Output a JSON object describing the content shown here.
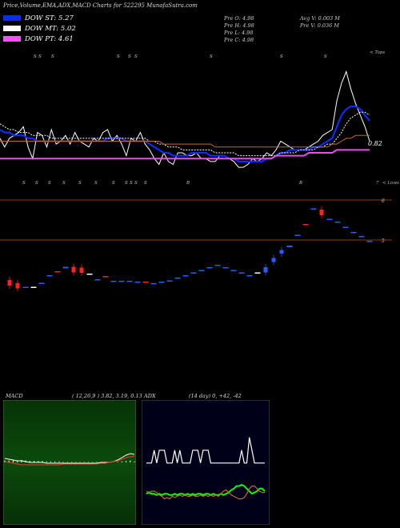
{
  "header": {
    "title": "Price,Volume,EMA,ADX,MACD Charts for 522295 MunafaSutra.com"
  },
  "legend": [
    {
      "label": "DOW ST: 5.27",
      "color": "#0a2dff"
    },
    {
      "label": "DOW MT: 5.02",
      "color": "#ffffff"
    },
    {
      "label": "DOW PT: 4.61",
      "color": "#ff4cff"
    }
  ],
  "price_info": {
    "open": "Pre  O: 4.98",
    "high": "Pre  H: 4.98",
    "low": "Pre  L: 4.98",
    "close": "Pre  C: 4.98",
    "avg_volume": "Avg V: 0.003  M",
    "volume": "Pre  V: 0.036  M"
  },
  "chart_data": [
    {
      "type": "line",
      "name": "price-ema-panel",
      "labels": {
        "top": "< Tops",
        "bottom": "< Lows",
        "bottom_num": "7",
        "last_value": "0.82",
        "marker": "S",
        "marker_b": "B"
      },
      "x": [
        1,
        2,
        3,
        4,
        5,
        6,
        7,
        8,
        9,
        10,
        11,
        12,
        13,
        14,
        15,
        16,
        17,
        18,
        19,
        20,
        21,
        22,
        23,
        24,
        25,
        26,
        27,
        28,
        29,
        30,
        31,
        32,
        33,
        34,
        35,
        36,
        37,
        38,
        39,
        40,
        41,
        42,
        43,
        44,
        45,
        46,
        47,
        48,
        49,
        50,
        51,
        52,
        53,
        54,
        55,
        56,
        57,
        58,
        59,
        60,
        61,
        62,
        63,
        64,
        65,
        66,
        67,
        68,
        69,
        70,
        71,
        72,
        73,
        74,
        75,
        76,
        77,
        78,
        79,
        80
      ],
      "series": [
        {
          "color": "#ffffff",
          "values": [
            4.3,
            4.0,
            4.3,
            4.4,
            4.5,
            4.7,
            4.0,
            3.6,
            4.5,
            4.4,
            4.0,
            4.6,
            4.1,
            4.2,
            4.4,
            4.1,
            4.5,
            4.2,
            4.1,
            4.0,
            4.3,
            4.2,
            4.5,
            4.6,
            4.2,
            4.4,
            4.1,
            3.7,
            4.3,
            4.2,
            4.5,
            4.1,
            3.9,
            3.6,
            3.4,
            3.8,
            3.5,
            3.4,
            3.8,
            3.8,
            3.7,
            3.7,
            3.8,
            3.6,
            3.6,
            3.5,
            3.5,
            3.7,
            3.7,
            3.6,
            3.5,
            3.3,
            3.3,
            3.4,
            3.6,
            3.5,
            3.6,
            3.8,
            3.7,
            3.9,
            4.2,
            4.1,
            4.0,
            3.9,
            3.9,
            3.9,
            4.0,
            4.1,
            4.2,
            4.4,
            4.5,
            4.6,
            5.6,
            6.2,
            6.6,
            6.0,
            5.5,
            5.1,
            4.7,
            4.2
          ]
        },
        {
          "color": "#0a2dff",
          "values": [
            4.6,
            4.5,
            4.5,
            4.4,
            4.4,
            4.4,
            4.3,
            4.3,
            4.2,
            4.2,
            4.2,
            4.2,
            4.2,
            4.2,
            4.2,
            4.2,
            4.2,
            4.2,
            4.2,
            4.2,
            4.2,
            4.2,
            4.2,
            4.3,
            4.3,
            4.3,
            4.3,
            4.2,
            4.2,
            4.2,
            4.2,
            4.2,
            4.1,
            4.0,
            3.9,
            3.8,
            3.8,
            3.7,
            3.7,
            3.7,
            3.7,
            3.8,
            3.8,
            3.8,
            3.8,
            3.7,
            3.7,
            3.7,
            3.7,
            3.6,
            3.6,
            3.5,
            3.5,
            3.5,
            3.5,
            3.5,
            3.5,
            3.6,
            3.6,
            3.7,
            3.8,
            3.8,
            3.9,
            3.9,
            3.9,
            3.9,
            3.9,
            4.0,
            4.0,
            4.1,
            4.2,
            4.3,
            4.7,
            5.1,
            5.3,
            5.4,
            5.4,
            5.3,
            5.1,
            4.9
          ]
        },
        {
          "color": "#ffffff",
          "values": [
            4.8,
            4.7,
            4.6,
            4.6,
            4.5,
            4.5,
            4.5,
            4.4,
            4.4,
            4.4,
            4.4,
            4.3,
            4.3,
            4.3,
            4.3,
            4.3,
            4.3,
            4.3,
            4.3,
            4.3,
            4.3,
            4.3,
            4.3,
            4.3,
            4.3,
            4.3,
            4.3,
            4.3,
            4.3,
            4.3,
            4.3,
            4.3,
            4.2,
            4.2,
            4.1,
            4.1,
            4.0,
            4.0,
            4.0,
            3.9,
            3.9,
            3.9,
            3.9,
            3.9,
            3.9,
            3.9,
            3.8,
            3.8,
            3.8,
            3.8,
            3.8,
            3.7,
            3.7,
            3.7,
            3.7,
            3.7,
            3.7,
            3.7,
            3.7,
            3.7,
            3.8,
            3.8,
            3.8,
            3.8,
            3.9,
            3.9,
            3.9,
            3.9,
            4.0,
            4.0,
            4.1,
            4.1,
            4.3,
            4.5,
            4.8,
            5.0,
            5.1,
            5.2,
            5.2,
            5.1
          ]
        },
        {
          "color": "#c8682a",
          "values": [
            4.2,
            4.2,
            4.2,
            4.2,
            4.2,
            4.2,
            4.2,
            4.2,
            4.2,
            4.2,
            4.2,
            4.2,
            4.2,
            4.2,
            4.2,
            4.2,
            4.2,
            4.2,
            4.2,
            4.2,
            4.2,
            4.2,
            4.2,
            4.2,
            4.2,
            4.2,
            4.2,
            4.2,
            4.2,
            4.2,
            4.2,
            4.2,
            4.2,
            4.2,
            4.2,
            4.1,
            4.1,
            4.1,
            4.1,
            4.1,
            4.1,
            4.1,
            4.1,
            4.1,
            4.1,
            4.1,
            4.0,
            4.0,
            4.0,
            4.0,
            4.0,
            4.0,
            4.0,
            4.0,
            4.0,
            4.0,
            4.0,
            4.0,
            4.0,
            4.0,
            4.0,
            4.0,
            4.0,
            4.0,
            4.0,
            4.0,
            4.0,
            4.0,
            4.0,
            4.0,
            4.0,
            4.1,
            4.1,
            4.2,
            4.3,
            4.3,
            4.4,
            4.4,
            4.4,
            4.4
          ]
        },
        {
          "color": "#e84ee8",
          "values": [
            3.6,
            3.6,
            3.6,
            3.6,
            3.6,
            3.6,
            3.6,
            3.6,
            3.6,
            3.6,
            3.6,
            3.6,
            3.6,
            3.6,
            3.6,
            3.6,
            3.6,
            3.6,
            3.6,
            3.6,
            3.6,
            3.6,
            3.6,
            3.6,
            3.6,
            3.6,
            3.6,
            3.6,
            3.6,
            3.6,
            3.6,
            3.6,
            3.6,
            3.6,
            3.6,
            3.6,
            3.6,
            3.6,
            3.6,
            3.6,
            3.6,
            3.6,
            3.6,
            3.6,
            3.6,
            3.6,
            3.6,
            3.6,
            3.6,
            3.6,
            3.6,
            3.6,
            3.6,
            3.6,
            3.6,
            3.6,
            3.6,
            3.6,
            3.6,
            3.7,
            3.7,
            3.7,
            3.7,
            3.7,
            3.7,
            3.7,
            3.8,
            3.8,
            3.8,
            3.8,
            3.8,
            3.8,
            3.9,
            3.9,
            3.9,
            3.9,
            3.9,
            3.9,
            3.9,
            3.9
          ]
        }
      ]
    },
    {
      "type": "candlestick",
      "name": "candle-panel",
      "levels": [
        {
          "value": 6,
          "label": "6"
        },
        {
          "value": 5,
          "label": "5"
        }
      ],
      "candles": [
        {
          "o": 4.0,
          "c": 3.86,
          "color": "#ff2020"
        },
        {
          "o": 3.92,
          "c": 3.79,
          "color": "#ff2020"
        },
        {
          "o": 3.83,
          "c": 3.83,
          "color": "#2060ff"
        },
        {
          "o": 3.83,
          "c": 3.83,
          "color": "#ffffff"
        },
        {
          "o": 3.93,
          "c": 3.93,
          "color": "#2060ff"
        },
        {
          "o": 4.12,
          "c": 4.12,
          "color": "#2060ff"
        },
        {
          "o": 4.22,
          "c": 4.22,
          "color": "#ff2020"
        },
        {
          "o": 4.29,
          "c": 4.33,
          "color": "#2060ff"
        },
        {
          "o": 4.33,
          "c": 4.19,
          "color": "#ff2020"
        },
        {
          "o": 4.31,
          "c": 4.18,
          "color": "#ff2020"
        },
        {
          "o": 4.16,
          "c": 4.16,
          "color": "#ffffff"
        },
        {
          "o": 4.02,
          "c": 4.02,
          "color": "#2060ff"
        },
        {
          "o": 4.1,
          "c": 4.1,
          "color": "#ff2020"
        },
        {
          "o": 3.98,
          "c": 3.98,
          "color": "#2060ff"
        },
        {
          "o": 3.98,
          "c": 3.98,
          "color": "#2060ff"
        },
        {
          "o": 3.98,
          "c": 3.98,
          "color": "#2060ff"
        },
        {
          "o": 3.96,
          "c": 3.96,
          "color": "#2060ff"
        },
        {
          "o": 3.96,
          "c": 3.96,
          "color": "#ff2020"
        },
        {
          "o": 3.92,
          "c": 3.92,
          "color": "#2060ff"
        },
        {
          "o": 3.96,
          "c": 3.96,
          "color": "#2060ff"
        },
        {
          "o": 3.99,
          "c": 3.99,
          "color": "#2060ff"
        },
        {
          "o": 4.06,
          "c": 4.06,
          "color": "#2060ff"
        },
        {
          "o": 4.12,
          "c": 4.12,
          "color": "#2060ff"
        },
        {
          "o": 4.19,
          "c": 4.19,
          "color": "#2060ff"
        },
        {
          "o": 4.25,
          "c": 4.25,
          "color": "#2060ff"
        },
        {
          "o": 4.32,
          "c": 4.32,
          "color": "#2060ff"
        },
        {
          "o": 4.38,
          "c": 4.38,
          "color": "#2060ff"
        },
        {
          "o": 4.32,
          "c": 4.32,
          "color": "#2060ff"
        },
        {
          "o": 4.25,
          "c": 4.25,
          "color": "#2060ff"
        },
        {
          "o": 4.19,
          "c": 4.19,
          "color": "#2060ff"
        },
        {
          "o": 4.12,
          "c": 4.12,
          "color": "#2060ff"
        },
        {
          "o": 4.19,
          "c": 4.19,
          "color": "#ffffff"
        },
        {
          "o": 4.19,
          "c": 4.32,
          "color": "#2060ff"
        },
        {
          "o": 4.45,
          "c": 4.55,
          "color": "#2060ff"
        },
        {
          "o": 4.66,
          "c": 4.75,
          "color": "#2060ff"
        },
        {
          "o": 4.82,
          "c": 4.86,
          "color": "#2060ff"
        },
        {
          "o": 5.13,
          "c": 5.13,
          "color": "#2060ff"
        },
        {
          "o": 5.4,
          "c": 5.4,
          "color": "#ff2020"
        },
        {
          "o": 5.79,
          "c": 5.79,
          "color": "#2060ff"
        },
        {
          "o": 5.76,
          "c": 5.62,
          "color": "#ff2020"
        },
        {
          "o": 5.53,
          "c": 5.53,
          "color": "#2060ff"
        },
        {
          "o": 5.46,
          "c": 5.46,
          "color": "#2060ff"
        },
        {
          "o": 5.33,
          "c": 5.33,
          "color": "#2060ff"
        },
        {
          "o": 5.2,
          "c": 5.2,
          "color": "#2060ff"
        },
        {
          "o": 5.1,
          "c": 5.1,
          "color": "#2060ff"
        },
        {
          "o": 4.98,
          "c": 4.98,
          "color": "#2060ff"
        }
      ]
    },
    {
      "type": "line",
      "name": "macd-panel",
      "title": "MACD",
      "params": "( 12,26,9 ) 3.82,  3.19,  0.13",
      "series": [
        {
          "color": "#ffffff",
          "values": [
            0.5,
            0.4,
            0.3,
            0.2,
            0.2,
            0.1,
            0.0,
            0.0,
            0.0,
            0.0,
            -0.1,
            -0.1,
            -0.1,
            -0.1,
            -0.1,
            -0.1,
            -0.1,
            -0.1,
            -0.1,
            -0.1,
            -0.1,
            -0.1,
            -0.1,
            0.0,
            0.0,
            0.0,
            0.1,
            0.3,
            0.6,
            0.9,
            1.1,
            1.0
          ]
        },
        {
          "color": "#ff3030",
          "values": [
            0.1,
            0.0,
            -0.1,
            -0.2,
            -0.3,
            -0.3,
            -0.3,
            -0.3,
            -0.3,
            -0.3,
            -0.3,
            -0.3,
            -0.3,
            -0.3,
            -0.2,
            -0.2,
            -0.2,
            -0.2,
            -0.2,
            -0.2,
            -0.2,
            -0.2,
            -0.2,
            -0.1,
            -0.1,
            0.0,
            0.1,
            0.2,
            0.4,
            0.6,
            0.7,
            0.8
          ]
        }
      ]
    },
    {
      "type": "line",
      "name": "adx-panel",
      "title": "ADX",
      "params": "(14  day) 0,  +42,  -42",
      "series": [
        {
          "color": "#ffffff",
          "values": [
            42,
            42,
            42,
            52,
            42,
            52,
            52,
            52,
            42,
            42,
            42,
            52,
            42,
            52,
            42,
            42,
            42,
            42,
            52,
            52,
            52,
            42,
            52,
            52,
            52,
            42,
            42,
            42,
            42,
            42,
            42,
            42,
            42,
            42,
            42,
            42,
            42,
            52,
            42,
            42,
            62,
            52,
            42,
            42,
            42,
            42,
            42
          ]
        },
        {
          "color": "#00ff00",
          "values": [
            18,
            19,
            18,
            18,
            17,
            18,
            17,
            18,
            18,
            17,
            17,
            18,
            17,
            18,
            18,
            17,
            18,
            17,
            18,
            17,
            18,
            18,
            17,
            18,
            18,
            17,
            18,
            17,
            17,
            18,
            17,
            18,
            19,
            21,
            22,
            24,
            24,
            25,
            24,
            22,
            20,
            18,
            19,
            20,
            22,
            22,
            20
          ]
        },
        {
          "color": "#c8682a",
          "values": [
            20,
            19,
            20,
            20,
            19,
            17,
            16,
            14,
            15,
            14,
            16,
            15,
            16,
            17,
            16,
            17,
            16,
            16,
            17,
            16,
            16,
            17,
            16,
            17,
            16,
            17,
            16,
            17,
            16,
            18,
            20,
            21,
            19,
            17,
            16,
            15,
            14,
            14,
            15,
            18,
            22,
            24,
            24,
            22,
            20,
            19,
            19
          ]
        }
      ]
    }
  ]
}
